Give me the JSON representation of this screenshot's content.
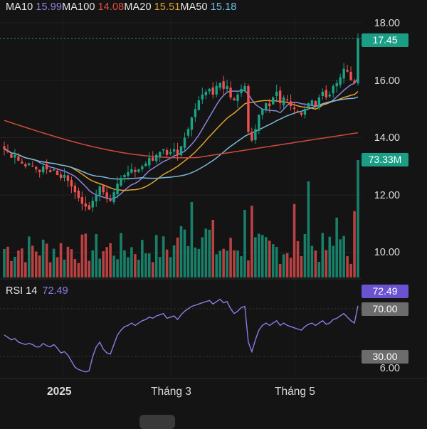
{
  "colors": {
    "background": "#141414",
    "up": "#1aa385",
    "down": "#f05050",
    "ma10": "#8b84e0",
    "ma100": "#d04a3a",
    "ma20": "#e0a030",
    "ma50": "#7ab8d8",
    "rsi": "#8b7de8",
    "price_tag": "#1a9e86",
    "rsi_tag": "#7058d8",
    "level_tag": "#707070"
  },
  "legend": [
    {
      "name": "MA10",
      "value": "15.99",
      "color": "#8b84e0"
    },
    {
      "name": "MA100",
      "value": "14.08",
      "color": "#e05040"
    },
    {
      "name": "MA20",
      "value": "15.51",
      "color": "#e0a030"
    },
    {
      "name": "MA50",
      "value": "15.18",
      "color": "#6ec0e8"
    }
  ],
  "price_axis": [
    "18.00",
    "16.00",
    "14.00",
    "12.00",
    "10.00"
  ],
  "rsi_axis_label": "6.00",
  "x_axis": [
    "2025",
    "Tháng 3",
    "Tháng 5"
  ],
  "tags": {
    "last_price": "17.45",
    "volume": "73.33M",
    "rsi_value": "72.49",
    "rsi_upper": "70.00",
    "rsi_lower": "30.00"
  },
  "rsi_legend": {
    "name": "RSI 14",
    "value": "72.49"
  },
  "chart_data": {
    "type": "candlestick",
    "price_range": [
      9.4,
      18.4
    ],
    "rsi_range": [
      12,
      82
    ],
    "last_price": 17.45,
    "closes": [
      13.6,
      13.5,
      13.3,
      13.4,
      13.2,
      13.1,
      13.0,
      13.1,
      13.0,
      12.9,
      12.8,
      13.0,
      12.9,
      12.8,
      12.9,
      12.7,
      12.6,
      12.7,
      12.5,
      12.3,
      12.1,
      11.9,
      11.7,
      11.6,
      11.5,
      11.8,
      12.0,
      12.3,
      12.1,
      11.9,
      11.8,
      12.1,
      12.4,
      12.6,
      12.7,
      12.8,
      12.9,
      12.8,
      12.9,
      13.0,
      13.1,
      13.3,
      13.2,
      13.4,
      13.5,
      13.6,
      13.4,
      13.5,
      13.6,
      13.4,
      13.7,
      14.0,
      14.3,
      14.7,
      15.0,
      15.3,
      15.5,
      15.6,
      15.7,
      15.5,
      15.8,
      15.9,
      15.7,
      15.8,
      15.4,
      15.3,
      15.5,
      15.7,
      15.8,
      14.2,
      13.9,
      14.3,
      14.8,
      15.0,
      15.2,
      15.1,
      15.4,
      15.6,
      15.2,
      15.4,
      15.3,
      15.1,
      15.0,
      14.9,
      14.8,
      15.0,
      15.2,
      15.3,
      15.1,
      15.4,
      15.6,
      15.4,
      15.5,
      15.8,
      15.9,
      16.1,
      16.4,
      16.3,
      16.0,
      15.9,
      17.45
    ],
    "rsi": [
      48,
      46,
      44,
      45,
      42,
      41,
      40,
      41,
      40,
      38,
      38,
      41,
      39,
      38,
      40,
      37,
      33,
      34,
      31,
      26,
      21,
      19,
      18,
      17,
      18,
      30,
      38,
      42,
      36,
      33,
      32,
      40,
      48,
      52,
      55,
      56,
      58,
      56,
      58,
      60,
      61,
      63,
      62,
      64,
      65,
      66,
      62,
      63,
      64,
      61,
      65,
      68,
      70,
      72,
      73,
      74,
      75,
      76,
      77,
      74,
      76,
      78,
      75,
      76,
      70,
      66,
      68,
      71,
      72,
      42,
      34,
      44,
      52,
      56,
      58,
      56,
      58,
      60,
      56,
      58,
      56,
      55,
      54,
      53,
      52,
      55,
      57,
      58,
      56,
      58,
      60,
      57,
      58,
      61,
      62,
      64,
      66,
      63,
      60,
      58,
      72.49
    ],
    "volume_scale": "relative"
  }
}
